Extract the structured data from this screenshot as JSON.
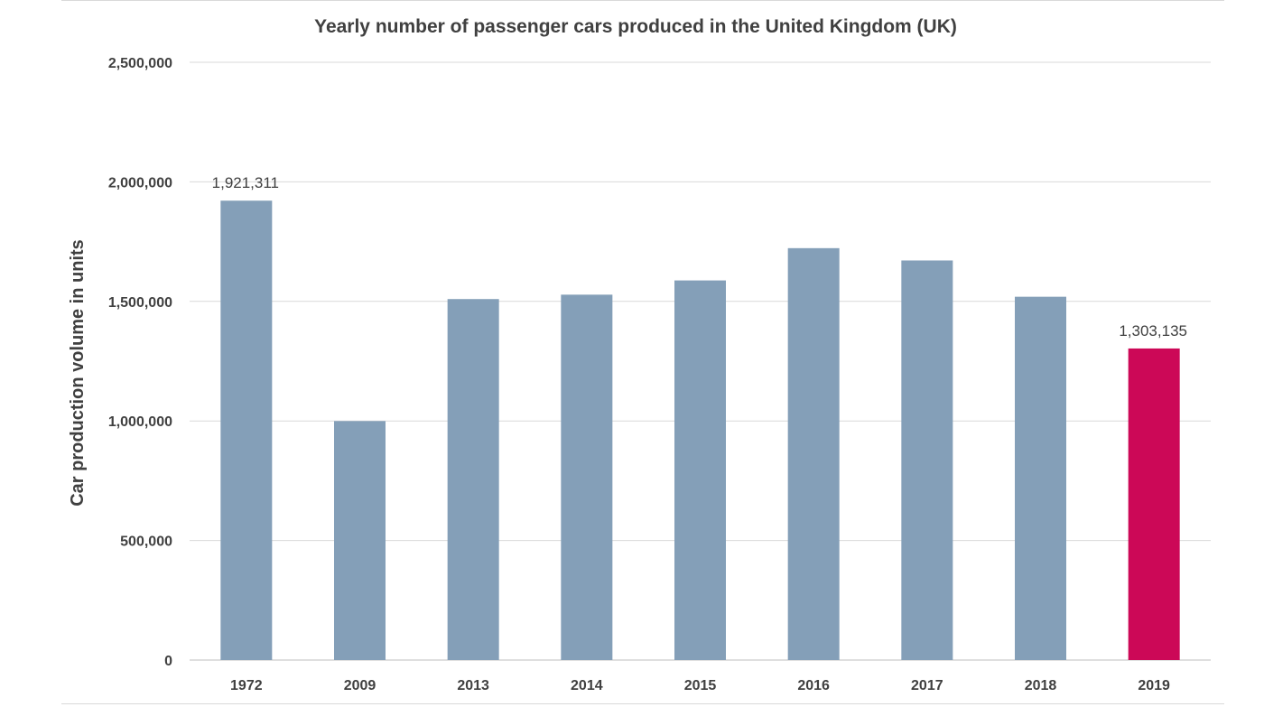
{
  "chart_data": {
    "type": "bar",
    "title": "Yearly number of passenger cars produced in the United Kingdom (UK)",
    "xlabel": "",
    "ylabel": "Car production volume in units",
    "categories": [
      "1972",
      "2009",
      "2013",
      "2014",
      "2015",
      "2016",
      "2017",
      "2018",
      "2019"
    ],
    "values": [
      1921311,
      999460,
      1509762,
      1528148,
      1587677,
      1722698,
      1671166,
      1519440,
      1303135
    ],
    "data_labels": {
      "1972": "1,921,311",
      "2019": "1,303,135"
    },
    "ylim": [
      0,
      2500000
    ],
    "yticks": [
      0,
      500000,
      1000000,
      1500000,
      2000000,
      2500000
    ],
    "ytick_labels": [
      "0",
      "500,000",
      "1,000,000",
      "1,500,000",
      "2,000,000",
      "2,500,000"
    ],
    "grid": true,
    "colors": {
      "default_bar": "#849fb8",
      "highlight_bar": "#cc0857"
    },
    "highlight_category": "2019"
  }
}
